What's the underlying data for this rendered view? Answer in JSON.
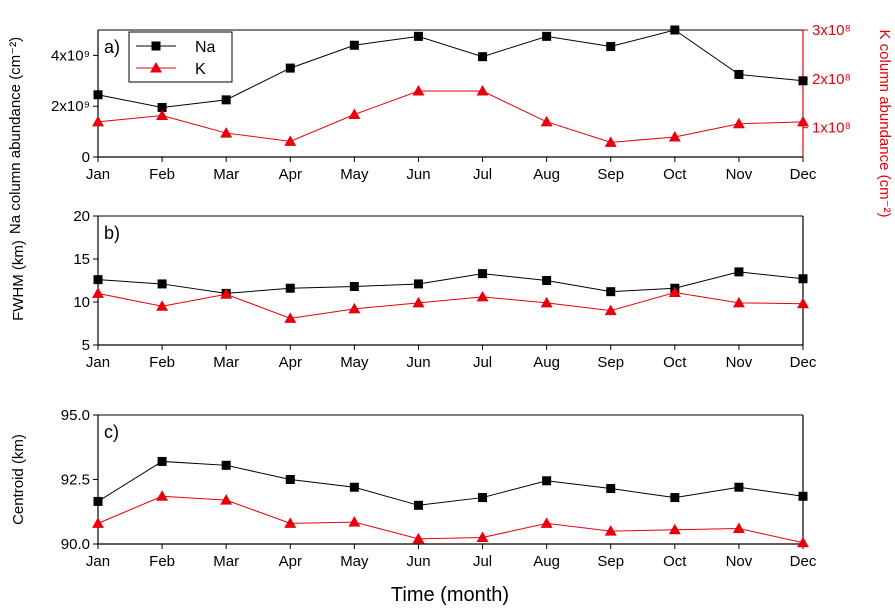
{
  "chart_data": [
    {
      "type": "line",
      "panel_label": "a)",
      "categories": [
        "Jan",
        "Feb",
        "Mar",
        "Apr",
        "May",
        "Jun",
        "Jul",
        "Aug",
        "Sep",
        "Oct",
        "Nov",
        "Dec"
      ],
      "ylabel": "Na column abundance (cm⁻²)",
      "ylim": [
        0,
        5000000000
      ],
      "y_ticks": [
        {
          "value": 0,
          "label": "0"
        },
        {
          "value": 2000000000,
          "label": "2x10⁹"
        },
        {
          "value": 4000000000,
          "label": "4x10⁹"
        }
      ],
      "ylabel_right": "K column abundance (cm⁻²)",
      "ylim_right": [
        40000000,
        300000000
      ],
      "y_ticks_right": [
        {
          "value": 100000000,
          "label": "1x10⁸"
        },
        {
          "value": 200000000,
          "label": "2x10⁸"
        },
        {
          "value": 300000000,
          "label": "3x10⁸"
        }
      ],
      "series": [
        {
          "name": "Na",
          "color": "#000000",
          "marker": "square",
          "axis": "left",
          "values": [
            2450000000,
            1950000000,
            2250000000,
            3500000000,
            4400000000,
            4750000000,
            3950000000,
            4750000000,
            4350000000,
            5000000000,
            3250000000,
            3000000000
          ]
        },
        {
          "name": "K",
          "color": "#e8000b",
          "marker": "triangle",
          "axis": "right",
          "values": [
            112000000,
            125000000,
            89000000,
            72000000,
            127000000,
            175000000,
            175000000,
            112000000,
            70000000,
            81000000,
            108000000,
            112000000
          ]
        }
      ],
      "legend": "top-left",
      "grid": false
    },
    {
      "type": "line",
      "panel_label": "b)",
      "categories": [
        "Jan",
        "Feb",
        "Mar",
        "Apr",
        "May",
        "Jun",
        "Jul",
        "Aug",
        "Sep",
        "Oct",
        "Nov",
        "Dec"
      ],
      "ylabel": "FWHM (km)",
      "ylim": [
        5,
        20
      ],
      "y_ticks": [
        {
          "value": 5,
          "label": "5"
        },
        {
          "value": 10,
          "label": "10"
        },
        {
          "value": 15,
          "label": "15"
        },
        {
          "value": 20,
          "label": "20"
        }
      ],
      "series": [
        {
          "name": "Na",
          "color": "#000000",
          "marker": "square",
          "axis": "left",
          "values": [
            12.6,
            12.1,
            11.0,
            11.6,
            11.8,
            12.1,
            13.3,
            12.5,
            11.2,
            11.6,
            13.5,
            12.7
          ]
        },
        {
          "name": "K",
          "color": "#e8000b",
          "marker": "triangle",
          "axis": "left",
          "values": [
            11.0,
            9.5,
            10.9,
            8.1,
            9.2,
            9.9,
            10.6,
            9.9,
            9.0,
            11.1,
            9.9,
            9.8
          ]
        }
      ],
      "grid": false
    },
    {
      "type": "line",
      "panel_label": "c)",
      "categories": [
        "Jan",
        "Feb",
        "Mar",
        "Apr",
        "May",
        "Jun",
        "Jul",
        "Aug",
        "Sep",
        "Oct",
        "Nov",
        "Dec"
      ],
      "ylabel": "Centroid (km)",
      "xlabel": "Time (month)",
      "ylim": [
        90.0,
        95.0
      ],
      "y_ticks": [
        {
          "value": 90.0,
          "label": "90.0"
        },
        {
          "value": 92.5,
          "label": "92.5"
        },
        {
          "value": 95.0,
          "label": "95.0"
        }
      ],
      "series": [
        {
          "name": "Na",
          "color": "#000000",
          "marker": "square",
          "axis": "left",
          "values": [
            91.65,
            93.2,
            93.05,
            92.5,
            92.2,
            91.5,
            91.8,
            92.45,
            92.15,
            91.8,
            92.2,
            91.85
          ]
        },
        {
          "name": "K",
          "color": "#e8000b",
          "marker": "triangle",
          "axis": "left",
          "values": [
            90.8,
            91.85,
            91.7,
            90.8,
            90.85,
            90.2,
            90.25,
            90.8,
            90.5,
            90.55,
            90.6,
            90.05
          ]
        }
      ],
      "grid": false
    }
  ]
}
